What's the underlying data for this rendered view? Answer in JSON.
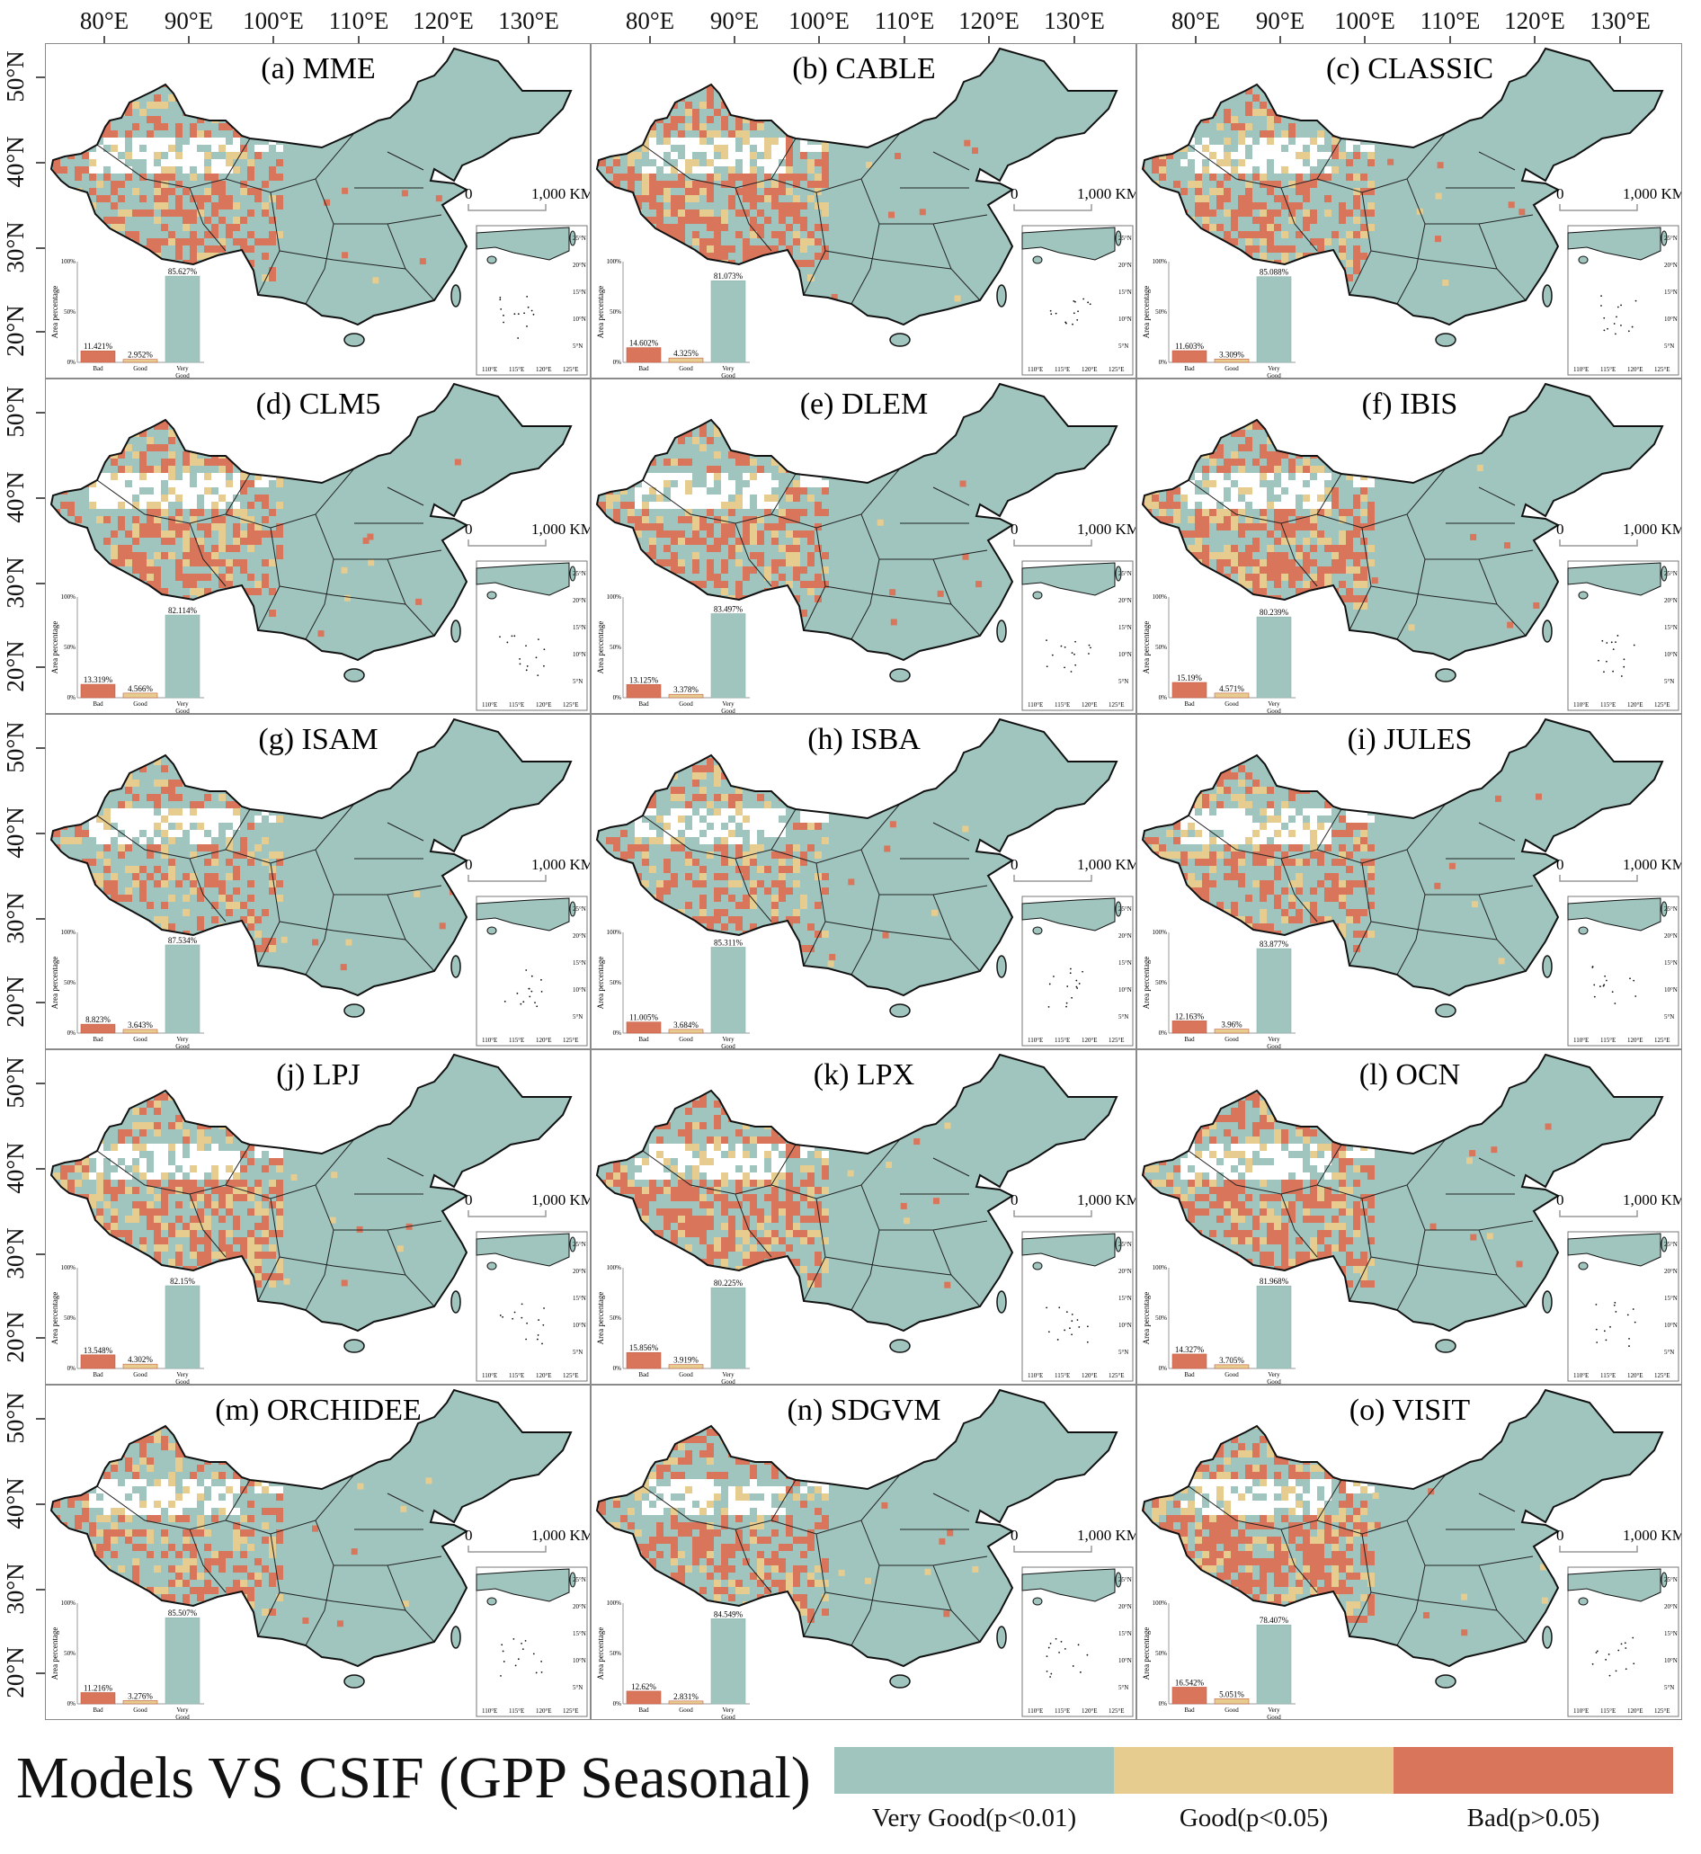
{
  "axes": {
    "lon_labels": [
      "80°E",
      "90°E",
      "100°E",
      "110°E",
      "120°E",
      "130°E"
    ],
    "lat_labels": [
      "50°N",
      "40°N",
      "30°N",
      "20°N"
    ]
  },
  "scale_bar": {
    "start": "0",
    "end": "1,000 KM"
  },
  "inset": {
    "lat_labels": [
      "25°N",
      "20°N",
      "15°N",
      "10°N",
      "5°N"
    ],
    "lon_labels": [
      "110°E",
      "115°E",
      "120°E",
      "125°E"
    ]
  },
  "bar_chart": {
    "ylabel": "Area percentage",
    "yticks": [
      "100%",
      "50%",
      "0%"
    ],
    "categories": [
      "Bad",
      "Good",
      "Very",
      "Good"
    ]
  },
  "colors": {
    "very_good": "#9FC5BE",
    "good": "#E6CC8E",
    "bad": "#D9755A",
    "outline": "#111111"
  },
  "panels": [
    {
      "title": "(a) MME",
      "bad": "11.421%",
      "good": "2.952%",
      "very_good": "85.627%"
    },
    {
      "title": "(b) CABLE",
      "bad": "14.602%",
      "good": "4.325%",
      "very_good": "81.073%"
    },
    {
      "title": "(c) CLASSIC",
      "bad": "11.603%",
      "good": "3.309%",
      "very_good": "85.088%"
    },
    {
      "title": "(d) CLM5",
      "bad": "13.319%",
      "good": "4.566%",
      "very_good": "82.114%"
    },
    {
      "title": "(e) DLEM",
      "bad": "13.125%",
      "good": "3.378%",
      "very_good": "83.497%"
    },
    {
      "title": "(f) IBIS",
      "bad": "15.19%",
      "good": "4.571%",
      "very_good": "80.239%"
    },
    {
      "title": "(g) ISAM",
      "bad": "8.823%",
      "good": "3.643%",
      "very_good": "87.534%"
    },
    {
      "title": "(h) ISBA",
      "bad": "11.005%",
      "good": "3.684%",
      "very_good": "85.311%"
    },
    {
      "title": "(i) JULES",
      "bad": "12.163%",
      "good": "3.96%",
      "very_good": "83.877%"
    },
    {
      "title": "(j) LPJ",
      "bad": "13.548%",
      "good": "4.302%",
      "very_good": "82.15%"
    },
    {
      "title": "(k) LPX",
      "bad": "15.856%",
      "good": "3.919%",
      "very_good": "80.225%"
    },
    {
      "title": "(l) OCN",
      "bad": "14.327%",
      "good": "3.705%",
      "very_good": "81.968%"
    },
    {
      "title": "(m) ORCHIDEE",
      "bad": "11.216%",
      "good": "3.276%",
      "very_good": "85.507%"
    },
    {
      "title": "(n) SDGVM",
      "bad": "12.62%",
      "good": "2.831%",
      "very_good": "84.549%"
    },
    {
      "title": "(o) VISIT",
      "bad": "16.542%",
      "good": "5.051%",
      "very_good": "78.407%"
    }
  ],
  "footer": {
    "title": "Models VS CSIF (GPP Seasonal)"
  },
  "legend": [
    {
      "label": "Very Good(p<0.01)",
      "color": "#9FC5BE"
    },
    {
      "label": "Good(p<0.05)",
      "color": "#E6CC8E"
    },
    {
      "label": "Bad(p>0.05)",
      "color": "#D9755A"
    }
  ]
}
